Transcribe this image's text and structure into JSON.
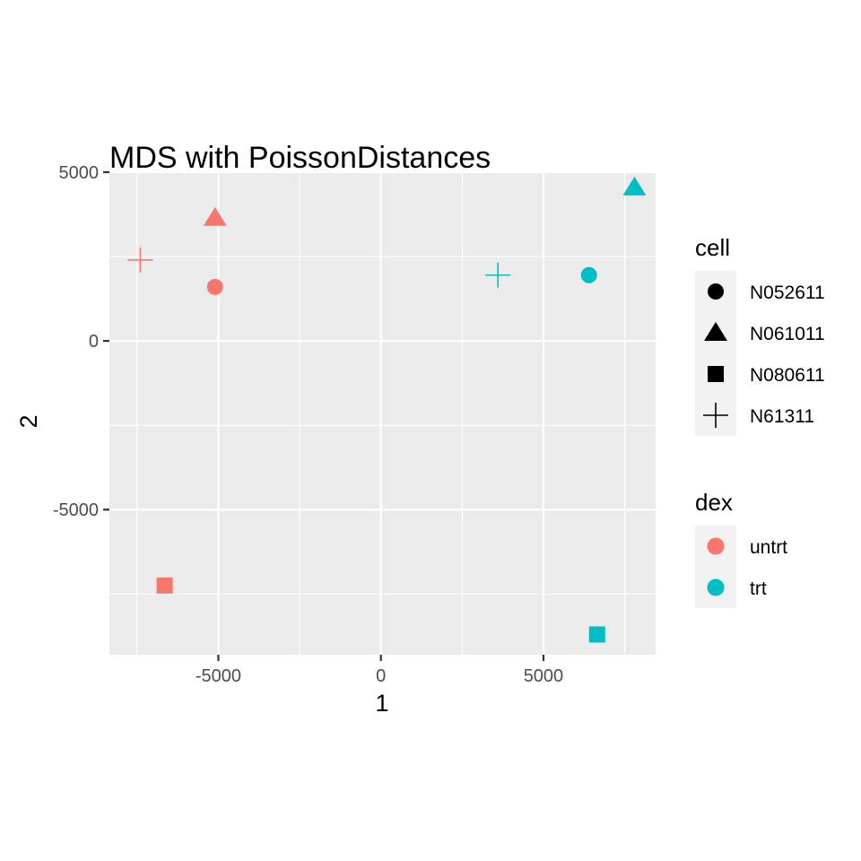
{
  "chart_data": {
    "type": "scatter",
    "title": "MDS with PoissonDistances",
    "xlabel": "1",
    "ylabel": "2",
    "xlim": [
      -8350,
      8450
    ],
    "ylim": [
      -9300,
      5000
    ],
    "x_ticks": [
      -5000,
      0,
      5000
    ],
    "y_ticks": [
      5000,
      0,
      -5000
    ],
    "x_tick_labels": [
      "-5000",
      "0",
      "5000"
    ],
    "y_tick_labels": [
      "5000",
      "0",
      "-5000"
    ],
    "grid": true,
    "legend_placement": "right",
    "colors": {
      "untrt": "#F8766D",
      "trt": "#00BFC4",
      "panel": "#EBEBEB",
      "grid": "#FFFFFF"
    },
    "legend": {
      "shape": {
        "title": "cell",
        "entries": [
          {
            "label": "N052611",
            "shape": "circle"
          },
          {
            "label": "N061011",
            "shape": "triangle"
          },
          {
            "label": "N080611",
            "shape": "square"
          },
          {
            "label": "N61311",
            "shape": "plus"
          }
        ]
      },
      "color": {
        "title": "dex",
        "entries": [
          {
            "label": "untrt",
            "color": "#F8766D"
          },
          {
            "label": "trt",
            "color": "#00BFC4"
          }
        ]
      }
    },
    "points": [
      {
        "x": -5100,
        "y": 1600,
        "cell": "N052611",
        "dex": "untrt"
      },
      {
        "x": -5100,
        "y": 3650,
        "cell": "N061011",
        "dex": "untrt"
      },
      {
        "x": -6650,
        "y": -7250,
        "cell": "N080611",
        "dex": "untrt"
      },
      {
        "x": -7400,
        "y": 2400,
        "cell": "N61311",
        "dex": "untrt"
      },
      {
        "x": 6400,
        "y": 1950,
        "cell": "N052611",
        "dex": "trt"
      },
      {
        "x": 7800,
        "y": 4550,
        "cell": "N061011",
        "dex": "trt"
      },
      {
        "x": 6650,
        "y": -8700,
        "cell": "N080611",
        "dex": "trt"
      },
      {
        "x": 3600,
        "y": 1950,
        "cell": "N61311",
        "dex": "trt"
      }
    ]
  }
}
